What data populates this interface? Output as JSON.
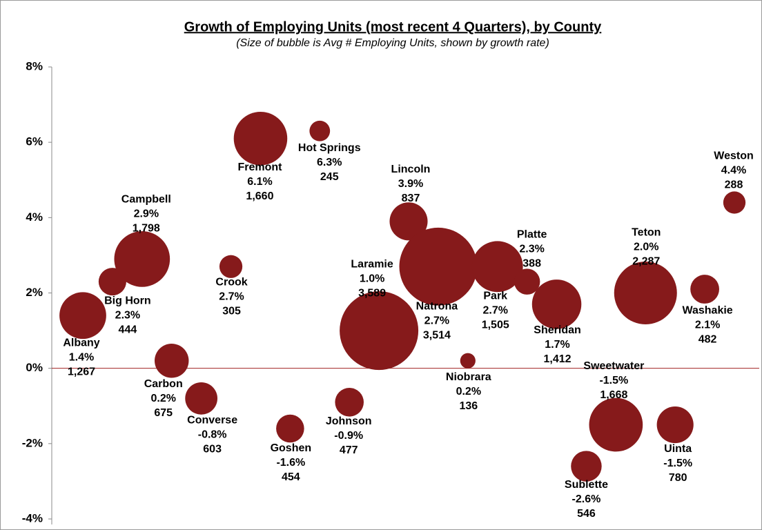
{
  "chart_data": {
    "type": "bubble",
    "title": "Growth of Employing Units (most recent 4 Quarters), by County",
    "subtitle": "(Size of bubble is Avg # Employing Units, shown by growth rate)",
    "categories": [
      "Albany",
      "Big Horn",
      "Campbell",
      "Carbon",
      "Converse",
      "Crook",
      "Fremont",
      "Goshen",
      "Hot Springs",
      "Johnson",
      "Laramie",
      "Lincoln",
      "Natrona",
      "Niobrara",
      "Park",
      "Platte",
      "Sheridan",
      "Sublette",
      "Sweetwater",
      "Teton",
      "Uinta",
      "Washakie",
      "Weston"
    ],
    "series": [
      {
        "color": "#861a1b",
        "values": [
          1.4,
          2.3,
          2.9,
          0.2,
          -0.8,
          2.7,
          6.1,
          -1.6,
          6.3,
          -0.9,
          1.0,
          3.9,
          2.7,
          0.2,
          2.7,
          2.3,
          1.7,
          -2.6,
          -1.5,
          2.0,
          -1.5,
          2.1,
          4.4
        ],
        "value_labels": [
          "1.4%",
          "2.3%",
          "2.9%",
          "0.2%",
          "-0.8%",
          "2.7%",
          "6.1%",
          "-1.6%",
          "6.3%",
          "-0.9%",
          "1.0%",
          "3.9%",
          "2.7%",
          "0.2%",
          "2.7%",
          "2.3%",
          "1.7%",
          "-2.6%",
          "-1.5%",
          "2.0%",
          "-1.5%",
          "2.1%",
          "4.4%"
        ],
        "sizes": [
          1267,
          444,
          1798,
          675,
          603,
          305,
          1660,
          454,
          245,
          477,
          3589,
          837,
          3514,
          136,
          1505,
          388,
          1412,
          546,
          1668,
          2287,
          780,
          482,
          288
        ],
        "size_labels": [
          "1,267",
          "444",
          "1,798",
          "675",
          "603",
          "305",
          "1,660",
          "454",
          "245",
          "477",
          "3,589",
          "837",
          "3,514",
          "136",
          "1,505",
          "388",
          "1,412",
          "546",
          "1,668",
          "2,287",
          "780",
          "482",
          "288"
        ]
      }
    ],
    "ylim": [
      -4,
      8
    ],
    "yticks": [
      {
        "value": -4,
        "label": "-4%"
      },
      {
        "value": -2,
        "label": "-2%"
      },
      {
        "value": 0,
        "label": "0%"
      },
      {
        "value": 2,
        "label": "2%"
      },
      {
        "value": 4,
        "label": "4%"
      },
      {
        "value": 6,
        "label": "6%"
      },
      {
        "value": 8,
        "label": "8%"
      }
    ],
    "zero_line_color": "#a02020"
  }
}
